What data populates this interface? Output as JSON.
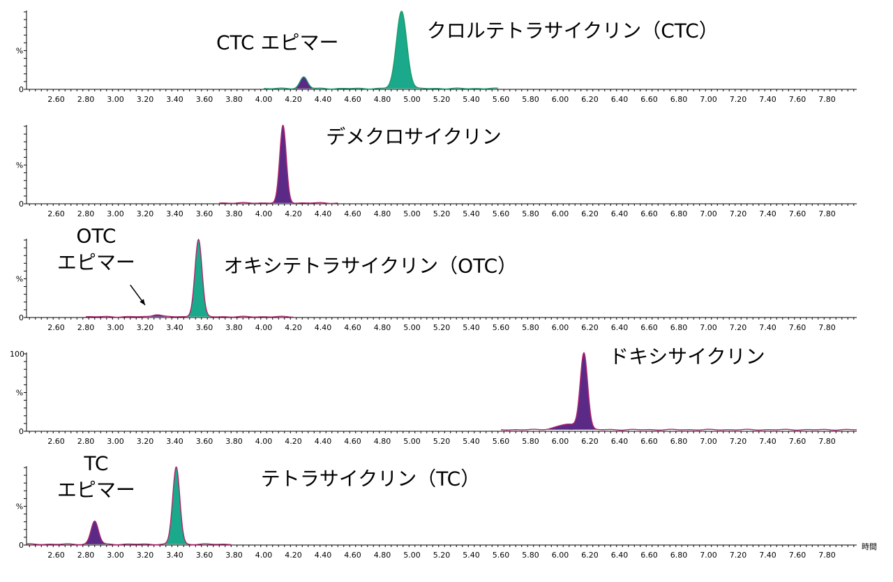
{
  "x_axis_unit": "時間",
  "y_axis_label": "%",
  "colors": {
    "purple_fill": "#5b2a86",
    "teal_fill": "#1aa98a",
    "trace_magenta": "#b0246e",
    "trace_green": "#1c9a6a"
  },
  "chart_data": {
    "type": "line",
    "x_ticks": [
      "2.60",
      "2.80",
      "3.00",
      "3.20",
      "3.40",
      "3.60",
      "3.80",
      "4.00",
      "4.20",
      "4.40",
      "4.60",
      "4.80",
      "5.00",
      "5.20",
      "5.40",
      "5.60",
      "5.80",
      "6.00",
      "6.20",
      "6.40",
      "6.60",
      "6.80",
      "7.00",
      "7.20",
      "7.40",
      "7.60",
      "7.80"
    ],
    "xlim": [
      2.4,
      8.0
    ],
    "ylim": [
      0,
      100
    ],
    "panels": [
      {
        "y_top_label": "",
        "trace_color": "trace_green",
        "trace_range": [
          4.0,
          5.58
        ],
        "baseline": 1,
        "peaks": [
          {
            "rt": 4.27,
            "height": 15,
            "width": 0.025,
            "fill": "purple_fill"
          },
          {
            "rt": 4.93,
            "height": 100,
            "width": 0.035,
            "fill": "teal_fill"
          }
        ],
        "labels": [
          {
            "lines": [
              "CTC エピマー"
            ],
            "anchor_rt": 3.68,
            "anchor_pct": 52
          },
          {
            "lines": [
              "クロルテトラサイクリン（CTC）"
            ],
            "anchor_rt": 5.1,
            "anchor_pct": 67
          }
        ]
      },
      {
        "y_top_label": "",
        "trace_color": "trace_magenta",
        "trace_range": [
          3.7,
          4.5
        ],
        "baseline": 1,
        "peaks": [
          {
            "rt": 4.13,
            "height": 100,
            "width": 0.022,
            "fill": "purple_fill"
          }
        ],
        "labels": [
          {
            "lines": [
              "デメクロサイクリン"
            ],
            "anchor_rt": 4.42,
            "anchor_pct": 78
          }
        ]
      },
      {
        "y_top_label": "",
        "trace_color": "trace_magenta",
        "trace_range": [
          2.8,
          4.2
        ],
        "baseline": 1,
        "peaks": [
          {
            "rt": 3.28,
            "height": 3,
            "width": 0.03,
            "fill": "purple_fill"
          },
          {
            "rt": 3.56,
            "height": 100,
            "width": 0.024,
            "fill": "teal_fill"
          }
        ],
        "labels": [
          {
            "lines": [
              "OTC",
              "エピマー"
            ],
            "anchor_rt": 2.87,
            "anchor_pct": 97
          },
          {
            "lines": [
              "オキシテトラサイクリン（OTC）"
            ],
            "anchor_rt": 3.73,
            "anchor_pct": 58
          }
        ],
        "arrow": {
          "from_rt": 3.1,
          "from_pct": 42,
          "to_rt": 3.2,
          "to_pct": 16
        }
      },
      {
        "y_top_label": "100",
        "trace_color": "trace_magenta",
        "trace_range": [
          5.6,
          8.0
        ],
        "baseline": 2,
        "peaks": [
          {
            "rt": 6.16,
            "height": 98,
            "width": 0.025,
            "fill": "purple_fill"
          }
        ],
        "shoulder": {
          "rt": 6.05,
          "height": 7,
          "width": 0.07
        },
        "labels": [
          {
            "lines": [
              "ドキシサイクリン"
            ],
            "anchor_rt": 6.33,
            "anchor_pct": 88
          }
        ]
      },
      {
        "y_top_label": "",
        "trace_color": "trace_magenta",
        "trace_range": [
          2.4,
          3.78
        ],
        "baseline": 1,
        "peaks": [
          {
            "rt": 2.86,
            "height": 30,
            "width": 0.025,
            "fill": "purple_fill"
          },
          {
            "rt": 3.41,
            "height": 100,
            "width": 0.024,
            "fill": "teal_fill"
          }
        ],
        "labels": [
          {
            "lines": [
              "TC",
              "エピマー"
            ],
            "anchor_rt": 2.87,
            "anchor_pct": 97
          },
          {
            "lines": [
              "テトラサイクリン（TC）"
            ],
            "anchor_rt": 3.98,
            "anchor_pct": 77
          }
        ]
      }
    ]
  }
}
